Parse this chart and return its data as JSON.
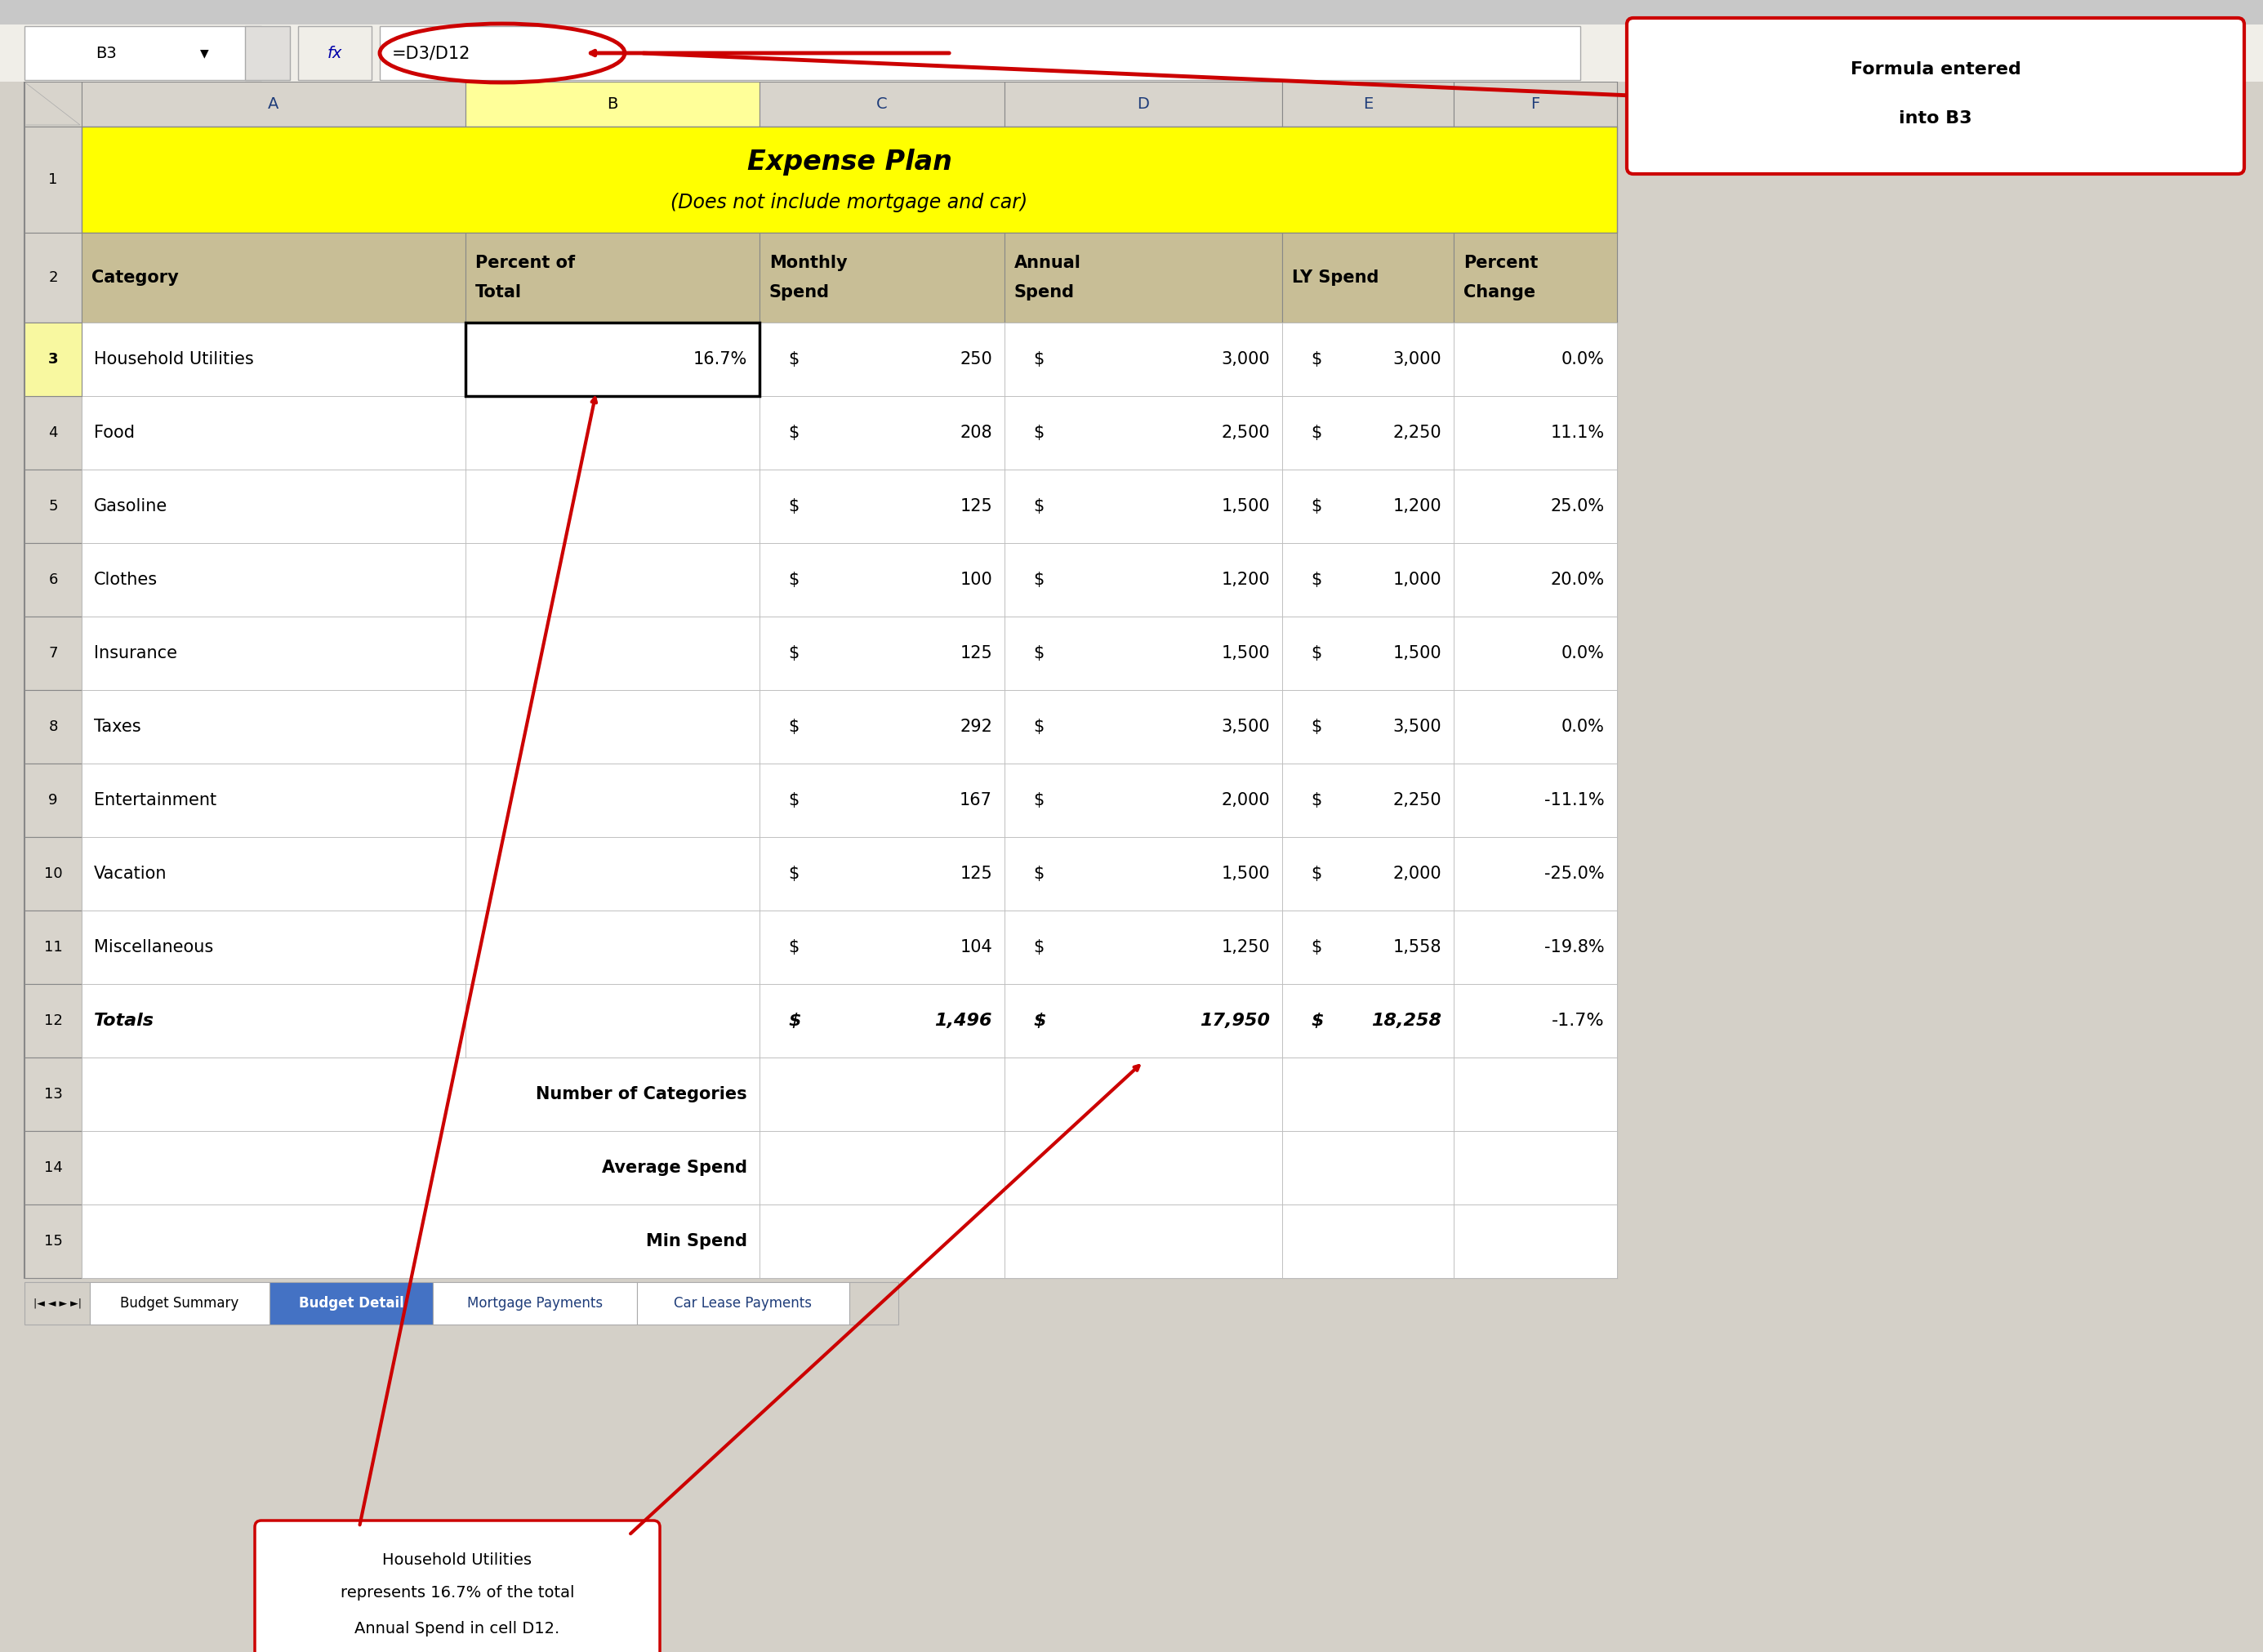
{
  "title_line1": "Expense Plan",
  "title_line2": "(Does not include mortgage and car)",
  "title_bg": "#FFFF00",
  "header_bg": "#D4C590",
  "col_b_selected_bg": "#FFFF99",
  "formula_bar_text": "=D3/D12",
  "cell_ref": "B3",
  "data": [
    [
      "Household Utilities",
      "16.7%",
      "$",
      "250",
      "$",
      "3,000",
      "$",
      "3,000",
      "0.0%"
    ],
    [
      "Food",
      "",
      "$",
      "208",
      "$",
      "2,500",
      "$",
      "2,250",
      "11.1%"
    ],
    [
      "Gasoline",
      "",
      "$",
      "125",
      "$",
      "1,500",
      "$",
      "1,200",
      "25.0%"
    ],
    [
      "Clothes",
      "",
      "$",
      "100",
      "$",
      "1,200",
      "$",
      "1,000",
      "20.0%"
    ],
    [
      "Insurance",
      "",
      "$",
      "125",
      "$",
      "1,500",
      "$",
      "1,500",
      "0.0%"
    ],
    [
      "Taxes",
      "",
      "$",
      "292",
      "$",
      "3,500",
      "$",
      "3,500",
      "0.0%"
    ],
    [
      "Entertainment",
      "",
      "$",
      "167",
      "$",
      "2,000",
      "$",
      "2,250",
      "-11.1%"
    ],
    [
      "Vacation",
      "",
      "$",
      "125",
      "$",
      "1,500",
      "$",
      "2,000",
      "-25.0%"
    ],
    [
      "Miscellaneous",
      "",
      "$",
      "104",
      "$",
      "1,250",
      "$",
      "1,558",
      "-19.8%"
    ]
  ],
  "extra_rows": [
    "Number of Categories",
    "Average Spend",
    "Min Spend"
  ],
  "tab_labels": [
    "Budget Summary",
    "Budget Detail",
    "Mortgage Payments",
    "Car Lease Payments"
  ],
  "active_tab": "Budget Detail",
  "bg_color": "#D4D0C8",
  "red_color": "#CC0000",
  "white": "#FFFFFF",
  "header_bg_color": "#C8BE96"
}
